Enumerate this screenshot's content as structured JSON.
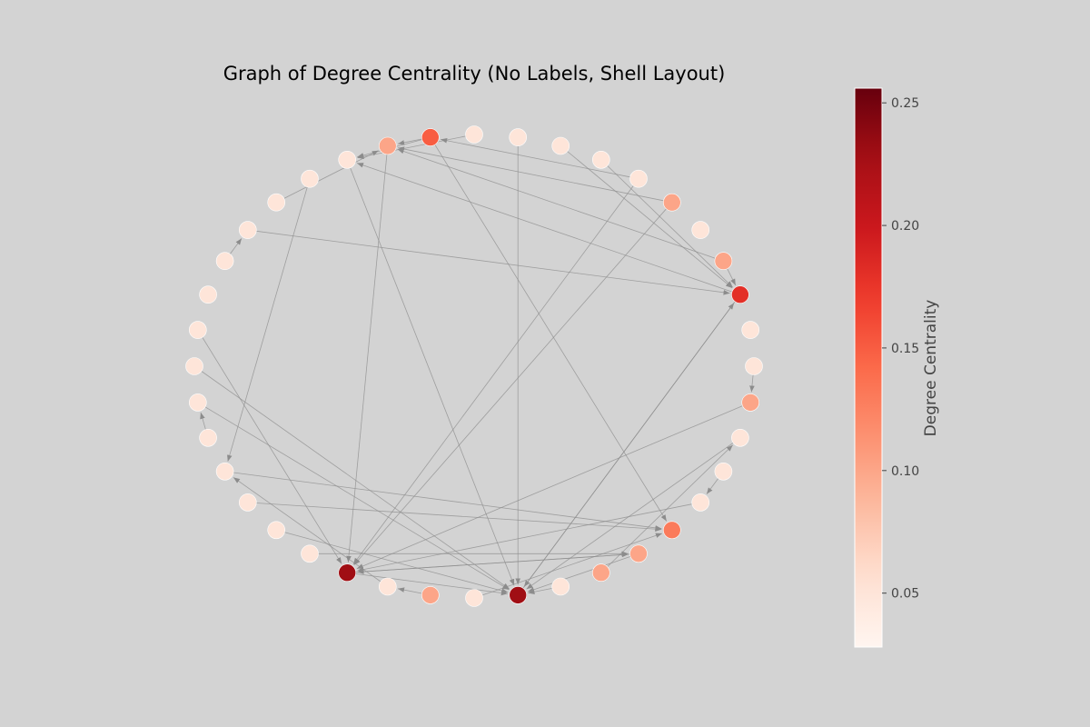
{
  "figure": {
    "title": "Graph of Degree Centrality (No Labels, Shell Layout)",
    "background_color": "#d3d3d3",
    "edge_color": "#8c8c8c",
    "node_border_color": "#ffffff",
    "colormap": "Reds"
  },
  "colorbar": {
    "label": "Degree Centrality",
    "min": 0.028,
    "max": 0.256,
    "ticks": [
      {
        "value": 0.05,
        "label": "0.05"
      },
      {
        "value": 0.1,
        "label": "0.10"
      },
      {
        "value": 0.15,
        "label": "0.15"
      },
      {
        "value": 0.2,
        "label": "0.20"
      },
      {
        "value": 0.25,
        "label": "0.25"
      }
    ]
  },
  "graph": {
    "layout": "shell",
    "nodes": [
      {
        "id": 0,
        "centrality": 0.05
      },
      {
        "id": 1,
        "centrality": 0.15
      },
      {
        "id": 2,
        "centrality": 0.1
      },
      {
        "id": 3,
        "centrality": 0.05
      },
      {
        "id": 4,
        "centrality": 0.05
      },
      {
        "id": 5,
        "centrality": 0.05
      },
      {
        "id": 6,
        "centrality": 0.05
      },
      {
        "id": 7,
        "centrality": 0.05
      },
      {
        "id": 8,
        "centrality": 0.05
      },
      {
        "id": 9,
        "centrality": 0.05
      },
      {
        "id": 10,
        "centrality": 0.05
      },
      {
        "id": 11,
        "centrality": 0.05
      },
      {
        "id": 12,
        "centrality": 0.05
      },
      {
        "id": 13,
        "centrality": 0.05
      },
      {
        "id": 14,
        "centrality": 0.05
      },
      {
        "id": 15,
        "centrality": 0.05
      },
      {
        "id": 16,
        "centrality": 0.05
      },
      {
        "id": 17,
        "centrality": 0.23
      },
      {
        "id": 18,
        "centrality": 0.05
      },
      {
        "id": 19,
        "centrality": 0.1
      },
      {
        "id": 20,
        "centrality": 0.05
      },
      {
        "id": 21,
        "centrality": 0.23
      },
      {
        "id": 22,
        "centrality": 0.05
      },
      {
        "id": 23,
        "centrality": 0.1
      },
      {
        "id": 24,
        "centrality": 0.1
      },
      {
        "id": 25,
        "centrality": 0.13
      },
      {
        "id": 26,
        "centrality": 0.05
      },
      {
        "id": 27,
        "centrality": 0.05
      },
      {
        "id": 28,
        "centrality": 0.05
      },
      {
        "id": 29,
        "centrality": 0.1
      },
      {
        "id": 30,
        "centrality": 0.05
      },
      {
        "id": 31,
        "centrality": 0.05
      },
      {
        "id": 32,
        "centrality": 0.18
      },
      {
        "id": 33,
        "centrality": 0.1
      },
      {
        "id": 34,
        "centrality": 0.05
      },
      {
        "id": 35,
        "centrality": 0.1
      },
      {
        "id": 36,
        "centrality": 0.05
      },
      {
        "id": 37,
        "centrality": 0.05
      },
      {
        "id": 38,
        "centrality": 0.05
      },
      {
        "id": 39,
        "centrality": 0.05
      }
    ],
    "edges": [
      [
        4,
        13
      ],
      [
        30,
        29
      ],
      [
        23,
        28
      ],
      [
        33,
        32
      ],
      [
        1,
        2
      ],
      [
        1,
        3
      ],
      [
        3,
        3
      ],
      [
        7,
        6
      ],
      [
        12,
        11
      ],
      [
        5,
        2
      ],
      [
        6,
        32
      ],
      [
        37,
        32
      ],
      [
        39,
        21
      ],
      [
        10,
        21
      ],
      [
        2,
        17
      ],
      [
        26,
        17
      ],
      [
        28,
        21
      ],
      [
        24,
        21
      ],
      [
        38,
        32
      ],
      [
        18,
        13
      ],
      [
        17,
        24
      ],
      [
        14,
        25
      ],
      [
        21,
        32
      ],
      [
        22,
        21
      ],
      [
        17,
        21
      ],
      [
        9,
        17
      ],
      [
        36,
        17
      ],
      [
        11,
        21
      ],
      [
        33,
        2
      ],
      [
        35,
        2
      ],
      [
        29,
        17
      ],
      [
        32,
        21
      ],
      [
        32,
        3
      ],
      [
        35,
        17
      ],
      [
        19,
        18
      ],
      [
        20,
        25
      ],
      [
        13,
        25
      ],
      [
        27,
        26
      ],
      [
        16,
        24
      ],
      [
        1,
        25
      ],
      [
        0,
        3
      ],
      [
        24,
        17
      ],
      [
        36,
        1
      ],
      [
        15,
        21
      ],
      [
        3,
        21
      ]
    ]
  }
}
